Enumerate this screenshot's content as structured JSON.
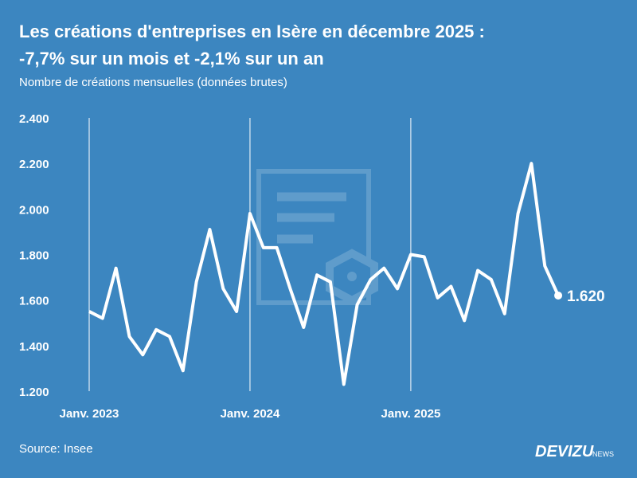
{
  "chart_data": {
    "type": "line",
    "title": [
      "Les créations d'entreprises en Isère en décembre 2025 :",
      "-7,7% sur un mois et -2,1% sur un an"
    ],
    "subtitle": "Nombre de créations mensuelles (données brutes)",
    "categories": [
      "Janv. 2023",
      null,
      null,
      null,
      null,
      null,
      null,
      null,
      null,
      null,
      null,
      null,
      "Janv. 2024",
      null,
      null,
      null,
      null,
      null,
      null,
      null,
      null,
      null,
      null,
      null,
      "Janv. 2025",
      null,
      null,
      null,
      null,
      null,
      null,
      null,
      null,
      null,
      null,
      null
    ],
    "series": [
      {
        "name": null,
        "color": "#ffffff",
        "values": [
          1550,
          1520,
          1740,
          1440,
          1360,
          1470,
          1440,
          1290,
          1680,
          1910,
          1650,
          1550,
          1980,
          1830,
          1830,
          1650,
          1480,
          1710,
          1680,
          1230,
          1580,
          1690,
          1740,
          1650,
          1800,
          1790,
          1610,
          1660,
          1510,
          1730,
          1690,
          1540,
          1980,
          2200,
          1750,
          1620
        ],
        "value_labels": [
          null,
          null,
          null,
          null,
          null,
          null,
          null,
          null,
          null,
          null,
          null,
          null,
          null,
          null,
          null,
          null,
          null,
          null,
          null,
          null,
          null,
          null,
          null,
          null,
          null,
          null,
          null,
          null,
          null,
          null,
          null,
          null,
          null,
          null,
          null,
          "1.620"
        ]
      }
    ],
    "ylim": [
      1200,
      2400
    ],
    "yticks": [
      {
        "value": 1200,
        "label": "1.200"
      },
      {
        "value": 1400,
        "label": "1.400"
      },
      {
        "value": 1600,
        "label": "1.600"
      },
      {
        "value": 1800,
        "label": "1.800"
      },
      {
        "value": 2000,
        "label": "2.000"
      },
      {
        "value": 2200,
        "label": "2.200"
      },
      {
        "value": 2400,
        "label": "2.400"
      }
    ],
    "grid": "x-labeled",
    "source": "Source: Insee",
    "brand": {
      "name": "DEVIZU",
      "suffix": "NEWS"
    }
  }
}
